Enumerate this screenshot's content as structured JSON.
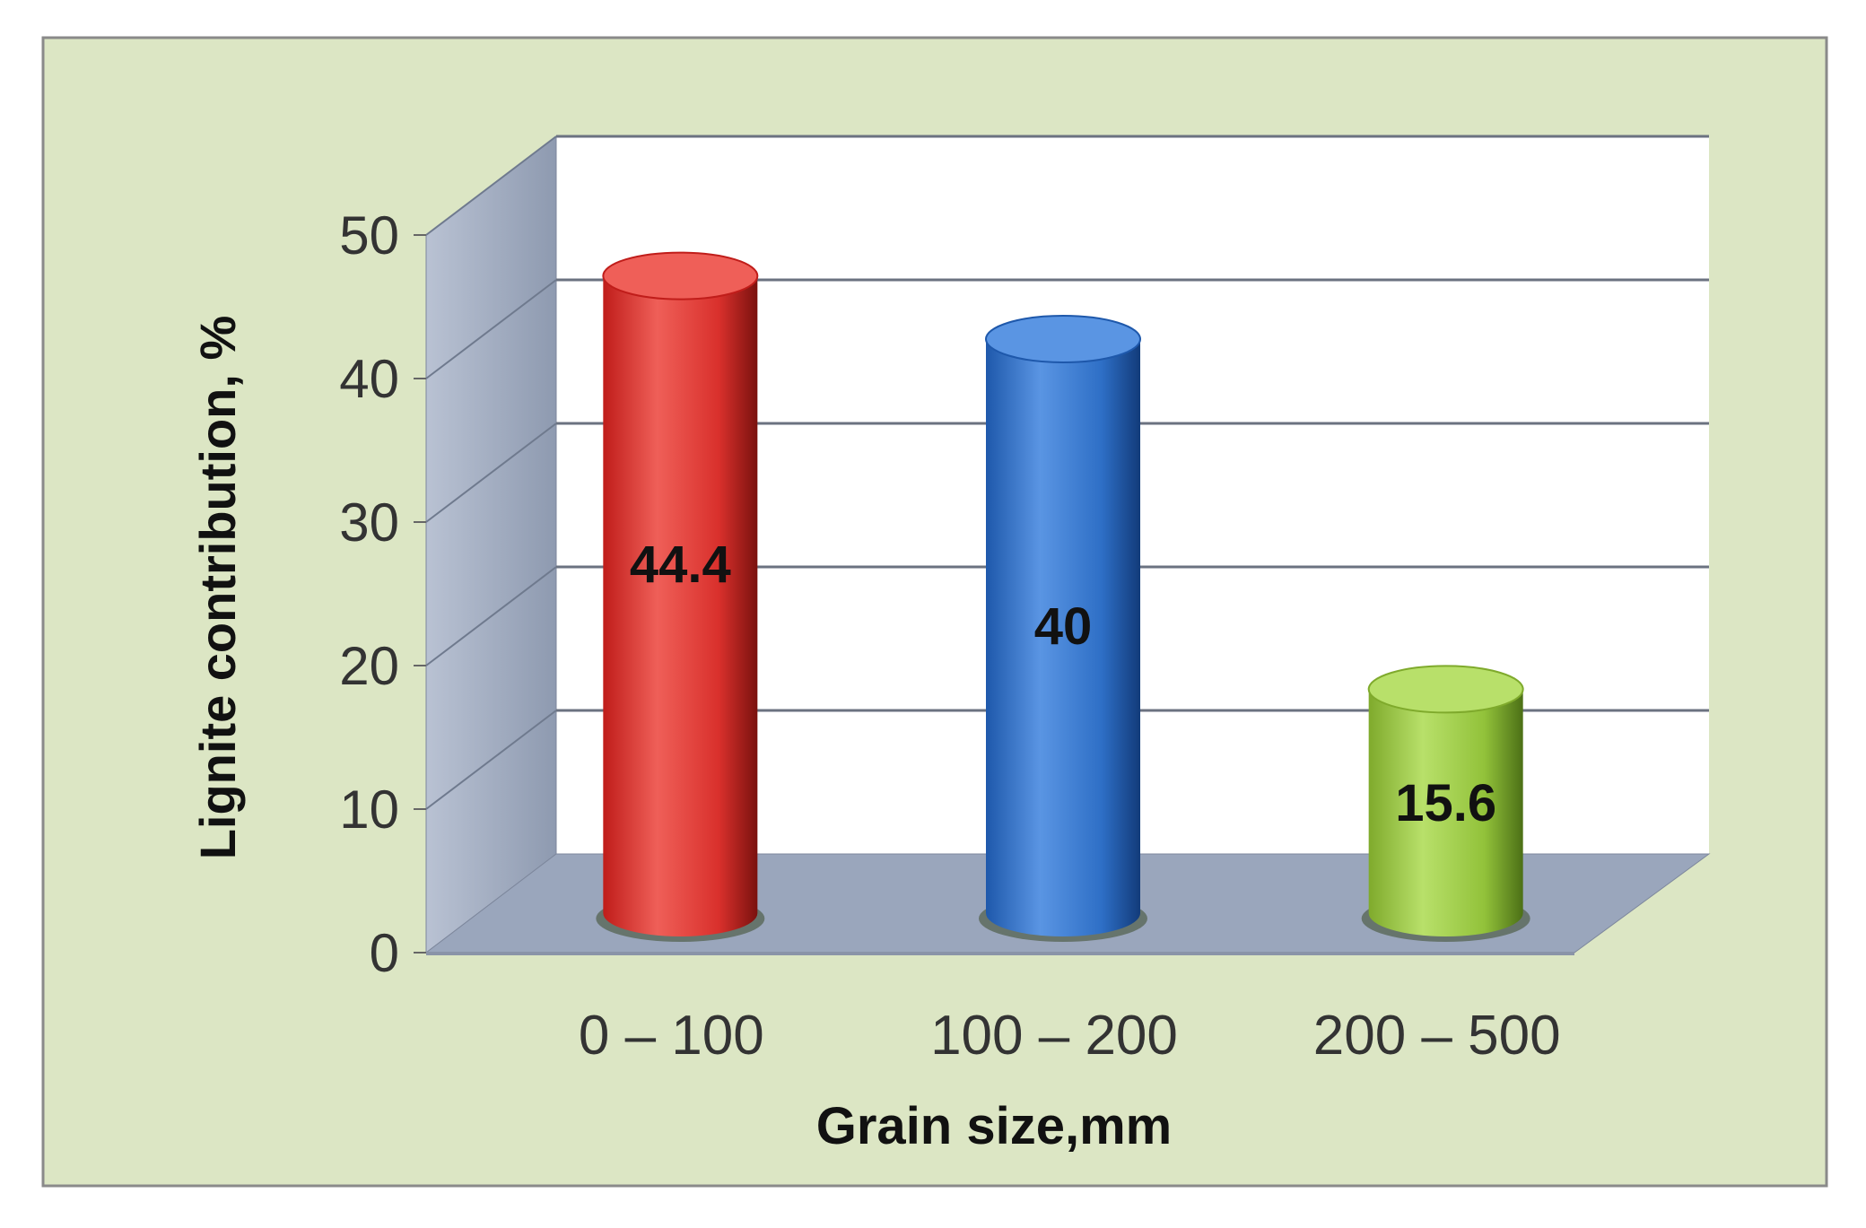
{
  "chart_data": {
    "type": "bar",
    "title": "",
    "xlabel": "Grain size,mm",
    "ylabel": "Lignite contribution, %",
    "categories": [
      "0 – 100",
      "100 – 200",
      "200 – 500"
    ],
    "values": [
      44.4,
      40,
      15.6
    ],
    "data_labels": [
      "44.4",
      "40",
      "15.6"
    ],
    "yticks": [
      "0",
      "10",
      "20",
      "30",
      "40",
      "50"
    ],
    "ylim": [
      0,
      50
    ],
    "grid": true,
    "legend": "none",
    "style": "3d-cylinder",
    "colors": {
      "background": "#dce6c4",
      "plot_wall": "#ffffff",
      "side_wall": "#8e9ab0",
      "floor": "#9aa6bc",
      "bars": [
        "#d9302c",
        "#2e6fc6",
        "#92c23a"
      ]
    }
  }
}
